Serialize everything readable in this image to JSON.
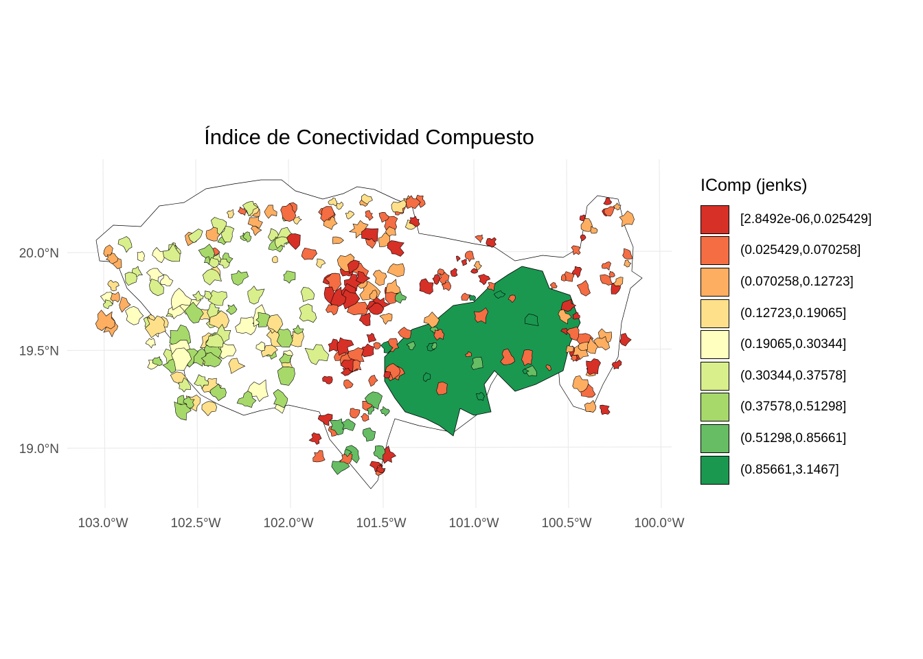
{
  "title": "Índice de Conectividad Compuesto",
  "x_ticks": [
    "103.0°W",
    "102.5°W",
    "102.0°W",
    "101.5°W",
    "101.0°W",
    "100.5°W",
    "100.0°W"
  ],
  "y_ticks": [
    "20.0°N",
    "19.5°N",
    "19.0°N"
  ],
  "legend": {
    "title": "IComp (jenks)",
    "items": [
      {
        "label": "[2.8492e-06,0.025429]",
        "color": "#d73027"
      },
      {
        "label": "(0.025429,0.070258]",
        "color": "#f46d43"
      },
      {
        "label": "(0.070258,0.12723]",
        "color": "#fdae61"
      },
      {
        "label": "(0.12723,0.19065]",
        "color": "#fee08b"
      },
      {
        "label": "(0.19065,0.30344]",
        "color": "#ffffbf"
      },
      {
        "label": "(0.30344,0.37578]",
        "color": "#d9ef8b"
      },
      {
        "label": "(0.37578,0.51298]",
        "color": "#a6d96a"
      },
      {
        "label": "(0.51298,0.85661]",
        "color": "#66bd63"
      },
      {
        "label": "(0.85661,3.1467]",
        "color": "#1a9850"
      }
    ]
  },
  "chart_data": {
    "type": "choropleth",
    "title": "Índice de Conectividad Compuesto",
    "xlim": [
      -103.0,
      -100.0
    ],
    "ylim": [
      18.8,
      20.3
    ],
    "legend_position": "right",
    "grid": true
  }
}
